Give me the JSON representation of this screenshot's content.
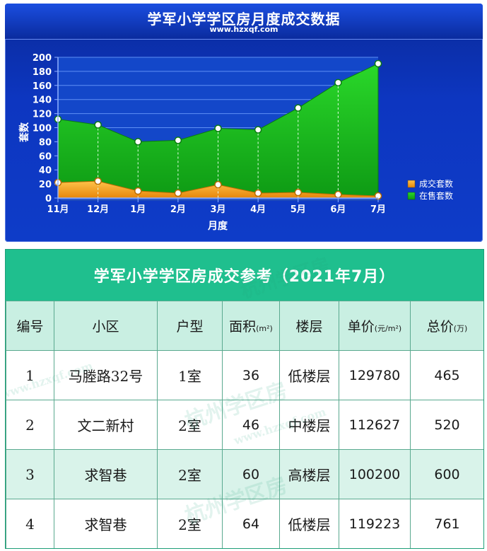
{
  "chart": {
    "title": "学军小学学区房月度成交数据",
    "site": "www.hzxqf.com"
  },
  "chart_data": {
    "type": "area",
    "categories": [
      "11月",
      "12月",
      "1月",
      "2月",
      "3月",
      "4月",
      "5月",
      "6月",
      "7月"
    ],
    "series": [
      {
        "name": "成交套数",
        "values": [
          22,
          24,
          10,
          7,
          19,
          7,
          8,
          5,
          3
        ],
        "color": "#f29a12"
      },
      {
        "name": "在售套数",
        "values": [
          112,
          104,
          80,
          82,
          99,
          97,
          128,
          164,
          191
        ],
        "color": "#1fc81f"
      }
    ],
    "xlabel": "月度",
    "ylabel": "套数",
    "ylim": [
      0,
      200
    ],
    "yticks": [
      0,
      20,
      40,
      60,
      80,
      100,
      120,
      140,
      160,
      180,
      200
    ],
    "grid": true,
    "legend_position": "right"
  },
  "table": {
    "title": "学军小学学区房成交参考（2021年7月）",
    "headers": [
      {
        "text": "编号",
        "unit": ""
      },
      {
        "text": "小区",
        "unit": ""
      },
      {
        "text": "户型",
        "unit": ""
      },
      {
        "text": "面积",
        "unit": "(m²)"
      },
      {
        "text": "楼层",
        "unit": ""
      },
      {
        "text": "单价",
        "unit": "(元/m²)"
      },
      {
        "text": "总价",
        "unit": "(万)"
      }
    ],
    "rows": [
      [
        "1",
        "马塍路32号",
        "1室",
        "36",
        "低楼层",
        "129780",
        "465"
      ],
      [
        "2",
        "文二新村",
        "2室",
        "46",
        "中楼层",
        "112627",
        "520"
      ],
      [
        "3",
        "求智巷",
        "2室",
        "60",
        "高楼层",
        "100200",
        "600"
      ],
      [
        "4",
        "求智巷",
        "2室",
        "64",
        "低楼层",
        "119223",
        "761"
      ]
    ],
    "watermark": "杭州学区房",
    "watermark_url": "www.hzxqf.com"
  }
}
